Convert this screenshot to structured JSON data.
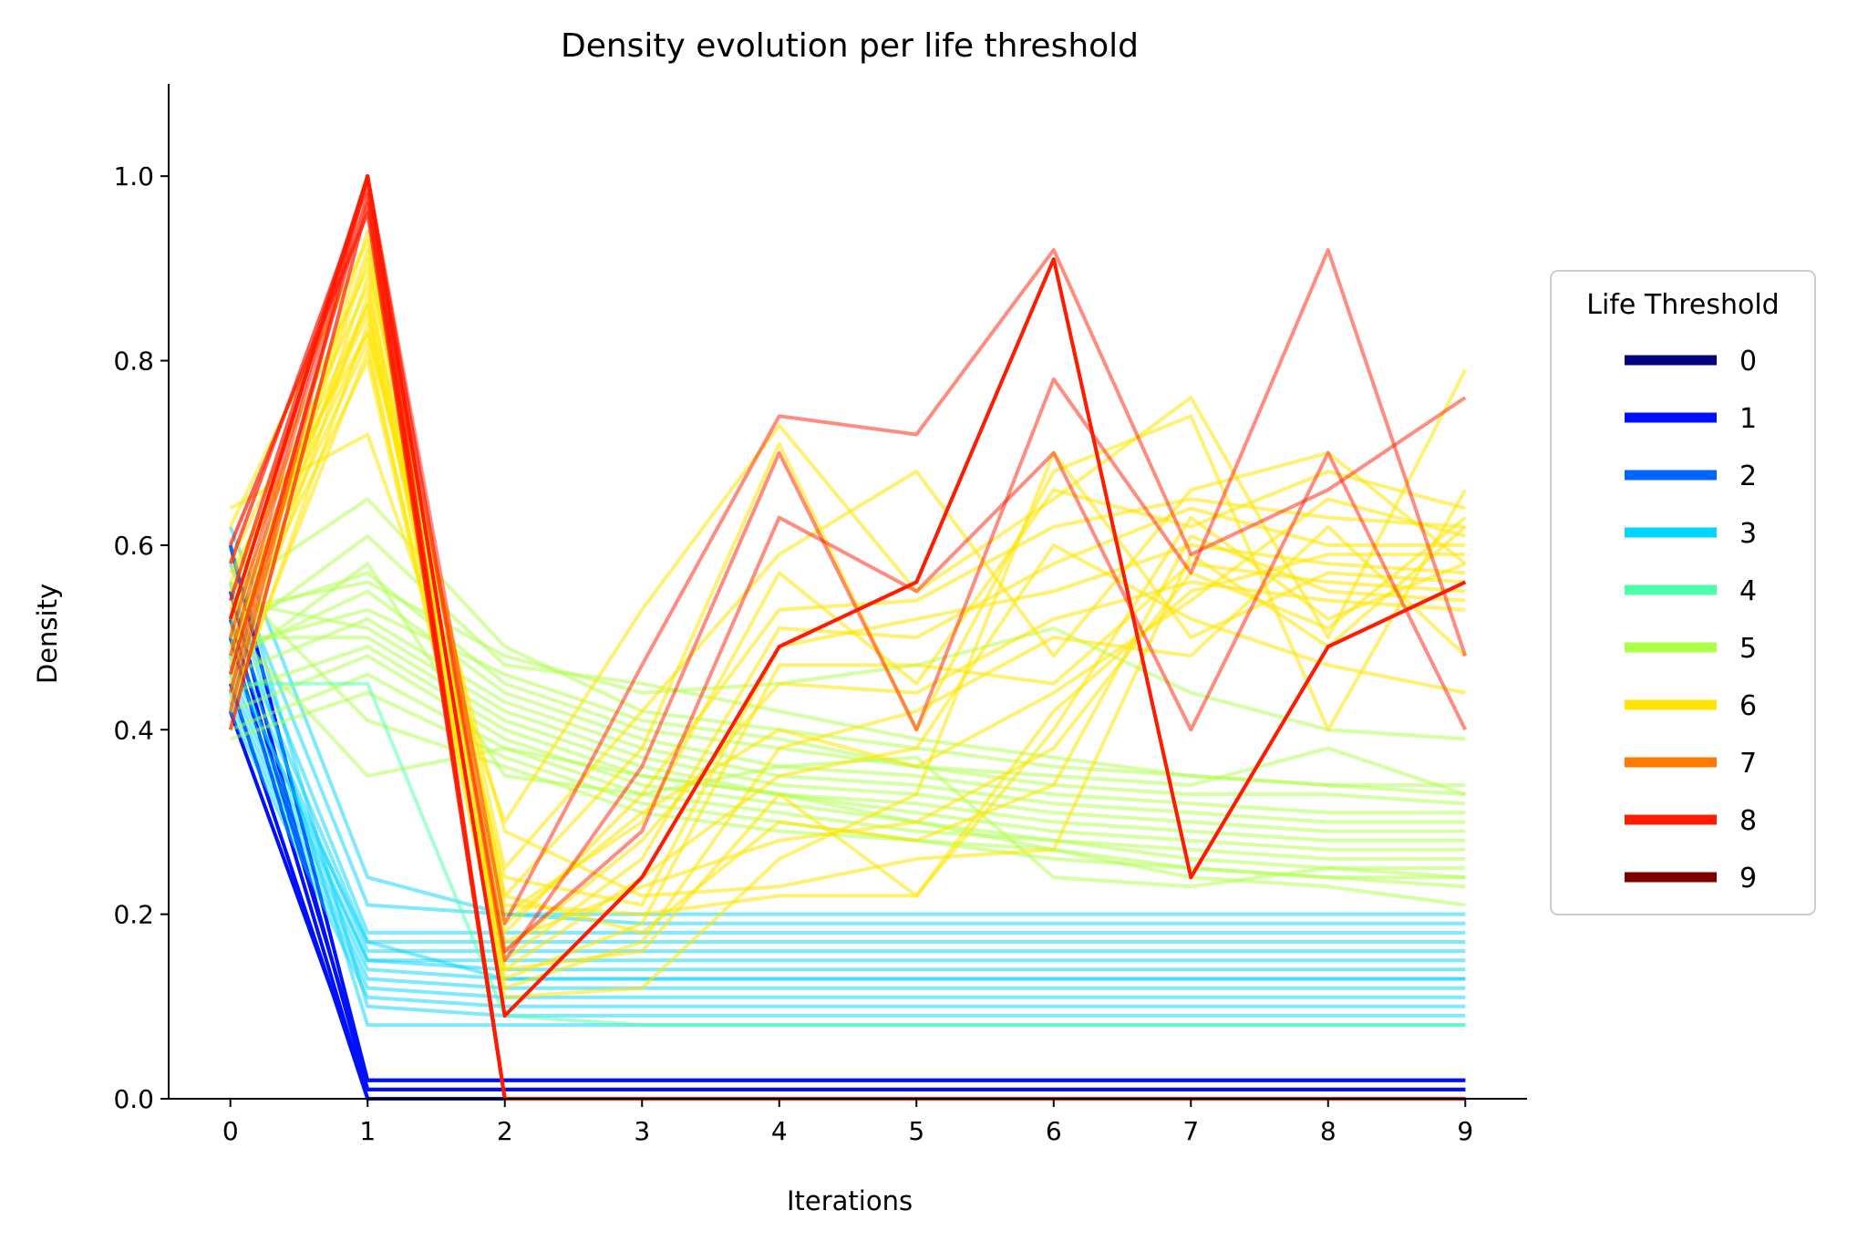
{
  "chart_data": {
    "type": "line",
    "title": "Density evolution per life threshold",
    "xlabel": "Iterations",
    "ylabel": "Density",
    "x": [
      0,
      1,
      2,
      3,
      4,
      5,
      6,
      7,
      8,
      9
    ],
    "xticks": [
      "0",
      "1",
      "2",
      "3",
      "4",
      "5",
      "6",
      "7",
      "8",
      "9"
    ],
    "yticks": [
      "0.0",
      "0.2",
      "0.4",
      "0.6",
      "0.8",
      "1.0"
    ],
    "ylim": [
      0,
      1.1
    ],
    "xlim": [
      -0.45,
      9.45
    ],
    "grid": false,
    "legend": {
      "title": "Life Threshold",
      "placement": "outside-right",
      "entries": [
        {
          "label": "0",
          "color": "#000080"
        },
        {
          "label": "1",
          "color": "#0010ff"
        },
        {
          "label": "2",
          "color": "#0064ff"
        },
        {
          "label": "3",
          "color": "#00d4ff"
        },
        {
          "label": "4",
          "color": "#4dffaa"
        },
        {
          "label": "5",
          "color": "#adff49"
        },
        {
          "label": "6",
          "color": "#ffe500"
        },
        {
          "label": "7",
          "color": "#ff7a00"
        },
        {
          "label": "8",
          "color": "#ff1a00"
        },
        {
          "label": "9",
          "color": "#800000"
        }
      ]
    },
    "series": [
      {
        "group": "1",
        "color": "#0010ff",
        "opacity": 1.0,
        "values": [
          0.6,
          0.02,
          0.02,
          0.02,
          0.02,
          0.02,
          0.02,
          0.02,
          0.02,
          0.02
        ]
      },
      {
        "group": "1",
        "color": "#0010ff",
        "opacity": 1.0,
        "values": [
          0.55,
          0.01,
          0.01,
          0.01,
          0.01,
          0.01,
          0.01,
          0.01,
          0.01,
          0.01
        ]
      },
      {
        "group": "1",
        "color": "#0010ff",
        "opacity": 1.0,
        "values": [
          0.5,
          0.0,
          0.0,
          0.0,
          0.0,
          0.0,
          0.0,
          0.0,
          0.0,
          0.0
        ]
      },
      {
        "group": "1",
        "color": "#0010ff",
        "opacity": 1.0,
        "values": [
          0.45,
          0.0,
          0.0,
          0.0,
          0.0,
          0.0,
          0.0,
          0.0,
          0.0,
          0.0
        ]
      },
      {
        "group": "1",
        "color": "#0010ff",
        "opacity": 1.0,
        "values": [
          0.42,
          0.01,
          0.01,
          0.01,
          0.01,
          0.01,
          0.01,
          0.01,
          0.01,
          0.01
        ]
      },
      {
        "group": "1",
        "color": "#0010ff",
        "opacity": 1.0,
        "values": [
          0.52,
          0.02,
          0.02,
          0.02,
          0.02,
          0.02,
          0.02,
          0.02,
          0.02,
          0.02
        ]
      },
      {
        "group": "3",
        "color": "#00d4ff",
        "opacity": 0.5,
        "values": [
          0.62,
          0.24,
          0.2,
          0.2,
          0.2,
          0.2,
          0.2,
          0.2,
          0.2,
          0.2
        ]
      },
      {
        "group": "3",
        "color": "#00d4ff",
        "opacity": 0.5,
        "values": [
          0.58,
          0.21,
          0.2,
          0.19,
          0.19,
          0.19,
          0.19,
          0.19,
          0.19,
          0.19
        ]
      },
      {
        "group": "3",
        "color": "#00d4ff",
        "opacity": 0.5,
        "values": [
          0.55,
          0.18,
          0.18,
          0.18,
          0.18,
          0.18,
          0.18,
          0.18,
          0.18,
          0.18
        ]
      },
      {
        "group": "3",
        "color": "#00d4ff",
        "opacity": 0.5,
        "values": [
          0.52,
          0.17,
          0.17,
          0.17,
          0.17,
          0.17,
          0.17,
          0.17,
          0.17,
          0.17
        ]
      },
      {
        "group": "3",
        "color": "#00d4ff",
        "opacity": 0.5,
        "values": [
          0.5,
          0.16,
          0.16,
          0.16,
          0.16,
          0.16,
          0.16,
          0.16,
          0.16,
          0.16
        ]
      },
      {
        "group": "3",
        "color": "#00d4ff",
        "opacity": 0.5,
        "values": [
          0.48,
          0.15,
          0.15,
          0.15,
          0.15,
          0.15,
          0.15,
          0.15,
          0.15,
          0.15
        ]
      },
      {
        "group": "3",
        "color": "#00d4ff",
        "opacity": 0.5,
        "values": [
          0.46,
          0.15,
          0.14,
          0.14,
          0.14,
          0.14,
          0.14,
          0.14,
          0.14,
          0.14
        ]
      },
      {
        "group": "3",
        "color": "#00d4ff",
        "opacity": 0.5,
        "values": [
          0.45,
          0.14,
          0.13,
          0.13,
          0.13,
          0.13,
          0.13,
          0.13,
          0.13,
          0.13
        ]
      },
      {
        "group": "3",
        "color": "#00d4ff",
        "opacity": 0.5,
        "values": [
          0.44,
          0.13,
          0.12,
          0.12,
          0.12,
          0.12,
          0.12,
          0.12,
          0.12,
          0.12
        ]
      },
      {
        "group": "3",
        "color": "#00d4ff",
        "opacity": 0.5,
        "values": [
          0.43,
          0.12,
          0.11,
          0.11,
          0.11,
          0.11,
          0.11,
          0.11,
          0.11,
          0.11
        ]
      },
      {
        "group": "3",
        "color": "#00d4ff",
        "opacity": 0.5,
        "values": [
          0.42,
          0.11,
          0.1,
          0.1,
          0.1,
          0.1,
          0.1,
          0.1,
          0.1,
          0.1
        ]
      },
      {
        "group": "3",
        "color": "#00d4ff",
        "opacity": 0.5,
        "values": [
          0.6,
          0.1,
          0.09,
          0.09,
          0.09,
          0.09,
          0.09,
          0.09,
          0.09,
          0.09
        ]
      },
      {
        "group": "3",
        "color": "#00d4ff",
        "opacity": 0.5,
        "values": [
          0.56,
          0.08,
          0.08,
          0.08,
          0.08,
          0.08,
          0.08,
          0.08,
          0.08,
          0.08
        ]
      },
      {
        "group": "3",
        "color": "#00d4ff",
        "opacity": 0.5,
        "values": [
          0.47,
          0.17,
          0.13,
          0.13,
          0.13,
          0.13,
          0.13,
          0.13,
          0.13,
          0.13
        ]
      },
      {
        "group": "5",
        "color": "#adff49",
        "opacity": 0.5,
        "values": [
          0.55,
          0.65,
          0.49,
          0.42,
          0.4,
          0.38,
          0.36,
          0.35,
          0.34,
          0.34
        ]
      },
      {
        "group": "5",
        "color": "#adff49",
        "opacity": 0.5,
        "values": [
          0.5,
          0.61,
          0.47,
          0.45,
          0.42,
          0.39,
          0.37,
          0.35,
          0.34,
          0.33
        ]
      },
      {
        "group": "5",
        "color": "#adff49",
        "opacity": 0.5,
        "values": [
          0.52,
          0.57,
          0.45,
          0.4,
          0.38,
          0.36,
          0.34,
          0.33,
          0.33,
          0.32
        ]
      },
      {
        "group": "5",
        "color": "#adff49",
        "opacity": 0.5,
        "values": [
          0.48,
          0.55,
          0.44,
          0.39,
          0.36,
          0.35,
          0.33,
          0.32,
          0.31,
          0.31
        ]
      },
      {
        "group": "5",
        "color": "#adff49",
        "opacity": 0.5,
        "values": [
          0.46,
          0.52,
          0.43,
          0.38,
          0.35,
          0.34,
          0.32,
          0.31,
          0.3,
          0.3
        ]
      },
      {
        "group": "5",
        "color": "#adff49",
        "opacity": 0.5,
        "values": [
          0.54,
          0.51,
          0.42,
          0.37,
          0.34,
          0.33,
          0.31,
          0.3,
          0.29,
          0.29
        ]
      },
      {
        "group": "5",
        "color": "#adff49",
        "opacity": 0.5,
        "values": [
          0.5,
          0.5,
          0.41,
          0.36,
          0.33,
          0.32,
          0.3,
          0.29,
          0.28,
          0.28
        ]
      },
      {
        "group": "5",
        "color": "#adff49",
        "opacity": 0.5,
        "values": [
          0.44,
          0.49,
          0.4,
          0.35,
          0.33,
          0.31,
          0.29,
          0.28,
          0.27,
          0.27
        ]
      },
      {
        "group": "5",
        "color": "#adff49",
        "opacity": 0.5,
        "values": [
          0.42,
          0.48,
          0.39,
          0.34,
          0.32,
          0.3,
          0.28,
          0.27,
          0.26,
          0.26
        ]
      },
      {
        "group": "5",
        "color": "#adff49",
        "opacity": 0.5,
        "values": [
          0.4,
          0.46,
          0.38,
          0.33,
          0.31,
          0.29,
          0.28,
          0.26,
          0.25,
          0.25
        ]
      },
      {
        "group": "5",
        "color": "#adff49",
        "opacity": 0.5,
        "values": [
          0.39,
          0.44,
          0.37,
          0.32,
          0.3,
          0.28,
          0.27,
          0.25,
          0.24,
          0.24
        ]
      },
      {
        "group": "5",
        "color": "#adff49",
        "opacity": 0.5,
        "values": [
          0.56,
          0.41,
          0.36,
          0.31,
          0.29,
          0.28,
          0.26,
          0.25,
          0.24,
          0.23
        ]
      },
      {
        "group": "5",
        "color": "#adff49",
        "opacity": 0.5,
        "values": [
          0.51,
          0.35,
          0.38,
          0.35,
          0.33,
          0.3,
          0.27,
          0.24,
          0.23,
          0.21
        ]
      },
      {
        "group": "5",
        "color": "#adff49",
        "opacity": 0.5,
        "values": [
          0.53,
          0.56,
          0.48,
          0.44,
          0.45,
          0.47,
          0.51,
          0.44,
          0.4,
          0.39
        ]
      },
      {
        "group": "5",
        "color": "#adff49",
        "opacity": 0.5,
        "values": [
          0.49,
          0.53,
          0.46,
          0.41,
          0.39,
          0.36,
          0.35,
          0.34,
          0.38,
          0.33
        ]
      },
      {
        "group": "5",
        "color": "#adff49",
        "opacity": 0.5,
        "values": [
          0.47,
          0.58,
          0.35,
          0.33,
          0.36,
          0.37,
          0.24,
          0.23,
          0.25,
          0.24
        ]
      },
      {
        "group": "5",
        "color": "#4dffaa",
        "opacity": 0.5,
        "values": [
          0.45,
          0.45,
          0.09,
          0.08,
          0.08,
          0.08,
          0.08,
          0.08,
          0.08,
          0.08
        ]
      },
      {
        "group": "6",
        "color": "#ffe500",
        "opacity": 0.55,
        "values": [
          0.64,
          0.72,
          0.3,
          0.53,
          0.73,
          0.55,
          0.65,
          0.76,
          0.5,
          0.79
        ]
      },
      {
        "group": "6",
        "color": "#ffe500",
        "opacity": 0.55,
        "values": [
          0.62,
          0.93,
          0.22,
          0.38,
          0.71,
          0.4,
          0.68,
          0.74,
          0.4,
          0.66
        ]
      },
      {
        "group": "6",
        "color": "#ffe500",
        "opacity": 0.55,
        "values": [
          0.58,
          0.9,
          0.25,
          0.42,
          0.59,
          0.68,
          0.48,
          0.66,
          0.7,
          0.58
        ]
      },
      {
        "group": "6",
        "color": "#ffe500",
        "opacity": 0.55,
        "values": [
          0.56,
          0.88,
          0.2,
          0.3,
          0.57,
          0.45,
          0.66,
          0.62,
          0.68,
          0.64
        ]
      },
      {
        "group": "6",
        "color": "#ffe500",
        "opacity": 0.55,
        "values": [
          0.55,
          0.86,
          0.18,
          0.33,
          0.53,
          0.54,
          0.62,
          0.65,
          0.63,
          0.62
        ]
      },
      {
        "group": "6",
        "color": "#ffe500",
        "opacity": 0.55,
        "values": [
          0.53,
          0.85,
          0.15,
          0.26,
          0.51,
          0.5,
          0.58,
          0.64,
          0.6,
          0.6
        ]
      },
      {
        "group": "6",
        "color": "#ffe500",
        "opacity": 0.55,
        "values": [
          0.52,
          0.83,
          0.24,
          0.21,
          0.49,
          0.52,
          0.55,
          0.6,
          0.58,
          0.57
        ]
      },
      {
        "group": "6",
        "color": "#ffe500",
        "opacity": 0.55,
        "values": [
          0.5,
          0.82,
          0.13,
          0.19,
          0.47,
          0.47,
          0.45,
          0.58,
          0.56,
          0.55
        ]
      },
      {
        "group": "6",
        "color": "#ffe500",
        "opacity": 0.55,
        "values": [
          0.49,
          0.8,
          0.16,
          0.28,
          0.45,
          0.44,
          0.52,
          0.56,
          0.54,
          0.53
        ]
      },
      {
        "group": "6",
        "color": "#ffe500",
        "opacity": 0.55,
        "values": [
          0.48,
          0.92,
          0.12,
          0.17,
          0.38,
          0.42,
          0.5,
          0.48,
          0.62,
          0.48
        ]
      },
      {
        "group": "6",
        "color": "#ffe500",
        "opacity": 0.55,
        "values": [
          0.46,
          0.94,
          0.14,
          0.24,
          0.35,
          0.38,
          0.6,
          0.52,
          0.47,
          0.44
        ]
      },
      {
        "group": "6",
        "color": "#ffe500",
        "opacity": 0.55,
        "values": [
          0.44,
          0.87,
          0.19,
          0.31,
          0.4,
          0.36,
          0.44,
          0.54,
          0.65,
          0.61
        ]
      },
      {
        "group": "6",
        "color": "#ffe500",
        "opacity": 0.55,
        "values": [
          0.42,
          0.84,
          0.21,
          0.2,
          0.22,
          0.22,
          0.42,
          0.55,
          0.59,
          0.59
        ]
      },
      {
        "group": "6",
        "color": "#ffe500",
        "opacity": 0.55,
        "values": [
          0.43,
          0.81,
          0.17,
          0.23,
          0.28,
          0.3,
          0.38,
          0.57,
          0.51,
          0.63
        ]
      },
      {
        "group": "6",
        "color": "#ffe500",
        "opacity": 0.55,
        "values": [
          0.45,
          0.89,
          0.11,
          0.12,
          0.26,
          0.33,
          0.7,
          0.5,
          0.57,
          0.56
        ]
      },
      {
        "group": "6",
        "color": "#ffe500",
        "opacity": 0.55,
        "values": [
          0.47,
          0.91,
          0.22,
          0.18,
          0.3,
          0.28,
          0.34,
          0.61,
          0.55,
          0.54
        ]
      },
      {
        "group": "6",
        "color": "#ffe500",
        "opacity": 0.55,
        "values": [
          0.51,
          0.86,
          0.14,
          0.16,
          0.33,
          0.22,
          0.4,
          0.63,
          0.52,
          0.58
        ]
      },
      {
        "group": "6",
        "color": "#ffe500",
        "opacity": 0.55,
        "values": [
          0.57,
          0.83,
          0.29,
          0.22,
          0.23,
          0.26,
          0.27,
          0.59,
          0.49,
          0.62
        ]
      },
      {
        "group": "8",
        "color": "#ff1a00",
        "opacity": 0.5,
        "values": [
          0.44,
          1.0,
          0.19,
          0.47,
          0.74,
          0.72,
          0.92,
          0.59,
          0.66,
          0.76
        ]
      },
      {
        "group": "8",
        "color": "#ff1a00",
        "opacity": 0.5,
        "values": [
          0.48,
          1.0,
          0.15,
          0.36,
          0.7,
          0.4,
          0.78,
          0.57,
          0.92,
          0.48
        ]
      },
      {
        "group": "8",
        "color": "#ff1a00",
        "opacity": 0.5,
        "values": [
          0.42,
          1.0,
          0.16,
          0.29,
          0.63,
          0.55,
          0.7,
          0.4,
          0.7,
          0.4
        ]
      },
      {
        "group": "8",
        "color": "#ff1a00",
        "opacity": 0.5,
        "values": [
          0.5,
          1.0,
          0.09,
          0.24,
          0.49,
          0.56,
          0.91,
          0.24,
          0.49,
          0.56
        ]
      },
      {
        "group": "8",
        "color": "#ff1a00",
        "opacity": 1.0,
        "values": [
          0.52,
          1.0,
          0.09,
          0.24,
          0.49,
          0.56,
          0.91,
          0.24,
          0.49,
          0.56
        ]
      },
      {
        "group": "8",
        "color": "#ff1a00",
        "opacity": 0.7,
        "values": [
          0.54,
          1.0,
          0.0,
          0.0,
          0.0,
          0.0,
          0.0,
          0.0,
          0.0,
          0.0
        ]
      },
      {
        "group": "8",
        "color": "#ff1a00",
        "opacity": 0.7,
        "values": [
          0.58,
          0.99,
          0.0,
          0.0,
          0.0,
          0.0,
          0.0,
          0.0,
          0.0,
          0.0
        ]
      },
      {
        "group": "8",
        "color": "#ff1a00",
        "opacity": 0.7,
        "values": [
          0.46,
          0.98,
          0.0,
          0.0,
          0.0,
          0.0,
          0.0,
          0.0,
          0.0,
          0.0
        ]
      },
      {
        "group": "8",
        "color": "#ff1a00",
        "opacity": 0.7,
        "values": [
          0.4,
          0.97,
          0.0,
          0.0,
          0.0,
          0.0,
          0.0,
          0.0,
          0.0,
          0.0
        ]
      },
      {
        "group": "8",
        "color": "#ff1a00",
        "opacity": 0.7,
        "values": [
          0.6,
          0.96,
          0.0,
          0.0,
          0.0,
          0.0,
          0.0,
          0.0,
          0.0,
          0.0
        ]
      }
    ]
  }
}
